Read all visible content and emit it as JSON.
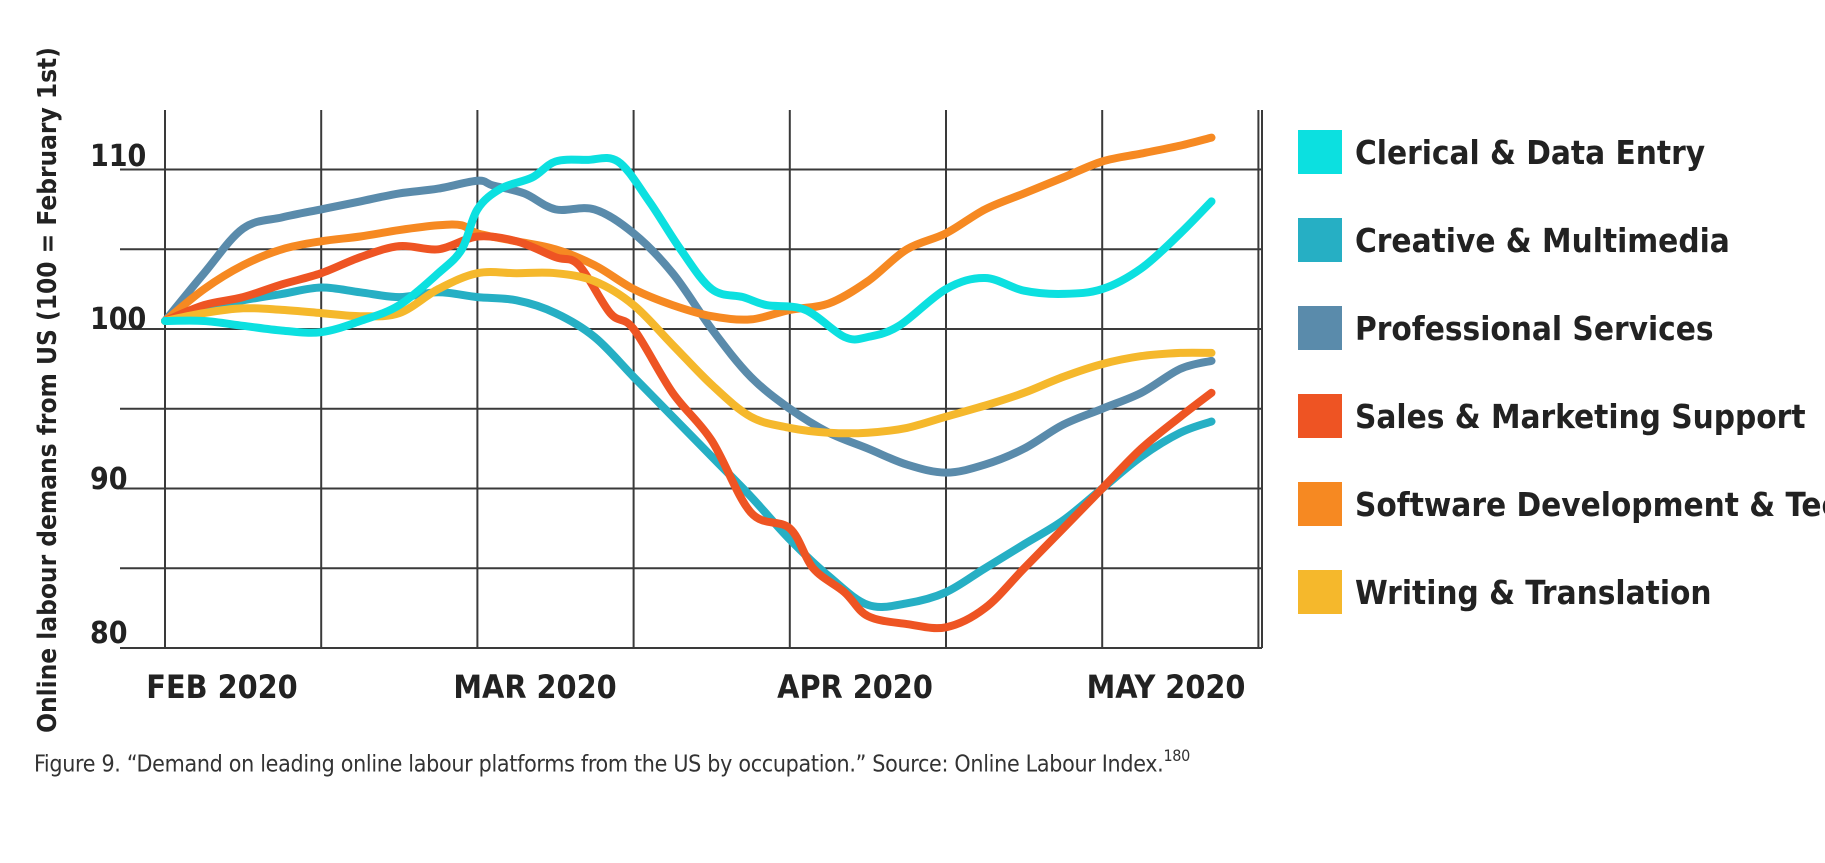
{
  "chart_data": {
    "type": "line",
    "title": "",
    "xlabel": "",
    "ylabel": "Online labour demans from US (100 = February 1st)",
    "ylim": [
      80,
      112
    ],
    "yticks": [
      "110",
      "100",
      "90",
      "80"
    ],
    "ytick_values": [
      110,
      100,
      90,
      80
    ],
    "grid_values": [
      80,
      85,
      90,
      95,
      100,
      105,
      110
    ],
    "xticks": [
      "FEB 2020",
      "MAR 2020",
      "APR 2020",
      "MAY 2020"
    ],
    "x_grid_weeks": [
      0,
      2,
      4,
      6,
      8,
      10,
      12,
      14
    ],
    "xlim": [
      0,
      14.3
    ],
    "legend_position": "right",
    "series": [
      {
        "name": "Clerical & Data Entry",
        "color": "#0CE0E0",
        "x": [
          0,
          0.5,
          1,
          1.5,
          2,
          2.5,
          3,
          3.5,
          3.8,
          4,
          4.3,
          4.7,
          5,
          5.4,
          5.8,
          6.2,
          6.6,
          7,
          7.4,
          7.7,
          8.2,
          8.7,
          9,
          9.4,
          10,
          10.5,
          11,
          11.5,
          12,
          12.5,
          13,
          13.4
        ],
        "y": [
          100.5,
          100.5,
          100.2,
          99.9,
          99.8,
          100.5,
          101.5,
          103.5,
          105,
          107.5,
          108.8,
          109.5,
          110.5,
          110.6,
          110.5,
          108,
          105,
          102.5,
          102,
          101.5,
          101.2,
          99.5,
          99.5,
          100.2,
          102.5,
          103.2,
          102.4,
          102.2,
          102.5,
          103.8,
          106,
          108
        ]
      },
      {
        "name": "Creative & Multimedia",
        "color": "#26AFC4",
        "x": [
          0,
          0.5,
          1,
          1.5,
          2,
          2.5,
          3,
          3.5,
          4,
          4.5,
          5,
          5.5,
          6,
          6.5,
          7,
          7.5,
          8,
          8.5,
          9,
          9.5,
          10,
          10.5,
          11,
          11.5,
          12,
          12.5,
          13,
          13.4
        ],
        "y": [
          100.5,
          101.3,
          101.8,
          102.2,
          102.6,
          102.3,
          102.0,
          102.3,
          102.0,
          101.8,
          101.0,
          99.5,
          97.0,
          94.5,
          92.0,
          89.5,
          86.8,
          84.5,
          82.7,
          82.8,
          83.5,
          85.0,
          86.5,
          88.0,
          90.0,
          92.0,
          93.5,
          94.2
        ]
      },
      {
        "name": "Professional Services",
        "color": "#5A8BAB",
        "x": [
          0,
          0.5,
          1,
          1.5,
          2,
          2.5,
          3,
          3.5,
          4,
          4.2,
          4.6,
          5,
          5.5,
          6,
          6.5,
          7,
          7.5,
          8,
          8.5,
          9,
          9.5,
          10,
          10.5,
          11,
          11.5,
          12,
          12.5,
          13,
          13.4
        ],
        "y": [
          100.5,
          103.5,
          106.3,
          107.0,
          107.5,
          108.0,
          108.5,
          108.8,
          109.3,
          109.0,
          108.5,
          107.5,
          107.5,
          106.0,
          103.5,
          100.0,
          97.0,
          95.0,
          93.5,
          92.5,
          91.5,
          91.0,
          91.5,
          92.5,
          94.0,
          95.0,
          96.0,
          97.5,
          98.0
        ]
      },
      {
        "name": "Sales & Marketing Support",
        "color": "#EE5423",
        "x": [
          0,
          0.5,
          1,
          1.5,
          2,
          2.5,
          3,
          3.5,
          4,
          4.5,
          5,
          5.3,
          5.7,
          6,
          6.5,
          7,
          7.5,
          8,
          8.3,
          8.7,
          9,
          9.5,
          10,
          10.5,
          11,
          11.5,
          12,
          12.5,
          13,
          13.4
        ],
        "y": [
          100.5,
          101.5,
          102.0,
          102.8,
          103.5,
          104.5,
          105.2,
          105.0,
          105.8,
          105.5,
          104.5,
          104.0,
          101.0,
          100.0,
          96.0,
          93.0,
          88.5,
          87.5,
          85.0,
          83.5,
          82.0,
          81.5,
          81.3,
          82.5,
          85.0,
          87.5,
          90.0,
          92.5,
          94.5,
          96.0
        ]
      },
      {
        "name": "Software Development & Tech",
        "color": "#F68922",
        "x": [
          0,
          0.5,
          1,
          1.5,
          2,
          2.5,
          3,
          3.5,
          3.8,
          4,
          4.5,
          5,
          5.5,
          6,
          6.5,
          7,
          7.5,
          8,
          8.5,
          9,
          9.5,
          10,
          10.5,
          11,
          11.5,
          12,
          12.5,
          13,
          13.4
        ],
        "y": [
          100.5,
          102.5,
          104.0,
          105.0,
          105.5,
          105.8,
          106.2,
          106.5,
          106.5,
          106.0,
          105.5,
          105.0,
          104.0,
          102.5,
          101.5,
          100.8,
          100.6,
          101.2,
          101.6,
          103.0,
          105.0,
          106.0,
          107.5,
          108.5,
          109.5,
          110.5,
          111.0,
          111.5,
          112.0
        ]
      },
      {
        "name": "Writing & Translation",
        "color": "#F5B82C",
        "x": [
          0,
          0.5,
          1,
          1.5,
          2,
          2.5,
          3,
          3.5,
          4,
          4.5,
          5,
          5.5,
          6,
          6.5,
          7,
          7.5,
          8,
          8.5,
          9,
          9.5,
          10,
          10.5,
          11,
          11.5,
          12,
          12.5,
          13,
          13.4
        ],
        "y": [
          100.5,
          101.0,
          101.3,
          101.2,
          101.0,
          100.8,
          101.0,
          102.5,
          103.5,
          103.5,
          103.5,
          103.0,
          101.5,
          99.0,
          96.5,
          94.5,
          93.8,
          93.5,
          93.5,
          93.8,
          94.5,
          95.2,
          96.0,
          97.0,
          97.8,
          98.3,
          98.5,
          98.5
        ]
      }
    ]
  },
  "caption": {
    "text": "Figure 9. “Demand on leading online labour platforms from the US by occupation.” Source: Online Labour Index.",
    "ref": "180"
  }
}
